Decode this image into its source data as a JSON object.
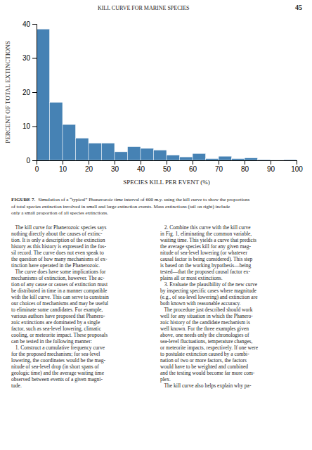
{
  "chart_data": {
    "type": "histogram",
    "bins": [
      0,
      5,
      10,
      15,
      20,
      25,
      30,
      35,
      40,
      45,
      50,
      55,
      60,
      65,
      70,
      75,
      80,
      85,
      90,
      95,
      100
    ],
    "values": [
      38.5,
      17.0,
      10.5,
      6.5,
      5.0,
      5.0,
      2.5,
      4.0,
      3.5,
      3.0,
      1.5,
      1.0,
      2.0,
      0.5,
      1.2,
      0.5,
      0.7,
      0.2,
      0.05,
      0.2
    ],
    "xlabel": "SPECIES KILL PER EVENT (%)",
    "ylabel": "PERCENT OF TOTAL EXTINCTIONS",
    "xlim": [
      0,
      100
    ],
    "ylim": [
      0,
      40
    ],
    "xticks": [
      0,
      10,
      20,
      30,
      40,
      50,
      60,
      70,
      80,
      90,
      100
    ],
    "yticks": [
      0,
      10,
      20,
      30,
      40
    ],
    "grid": false
  },
  "page_header": "KILL CURVE FOR MARINE SPECIES",
  "page_number": "45",
  "figure_caption_label": "FIGURE 7.",
  "figure_caption_lines": [
    "Simulation of a “typical” Phanerozoic time interval of 600 m.y. using the kill curve to show the proportions",
    "of total species extinction involved in small and large extinction events. Mass extinctions (tail on right) include",
    "only a small proportion of all species extinctions."
  ],
  "col1_lines": [
    "   The kill curve for Phanerozoic species says",
    "nothing directly about the causes of extinc-",
    "tion. It is only a description of the extinction",
    "history as this history is expressed in the fos-",
    "sil record. The curve does not even speak to",
    "the question of how many mechanisms of ex-",
    "tinction have operated in the Phanerozoic.",
    "   The curve does have some implications for",
    "mechanisms of extinction, however. The ac-",
    "tion of any cause or causes of extinction must",
    "be distributed in time in a manner compatible",
    "with the kill curve. This can serve to constrain",
    "our choices of mechanisms and may be useful",
    "to eliminate some candidates. For example,",
    "various authors have proposed that Phanero-",
    "zoic extinctions are dominated by a single",
    "factor, such as sea-level lowering, climatic",
    "cooling, or meteorite impact. These proposals",
    "can be tested in the following manner:",
    "   1. Construct a cumulative frequency curve",
    "for the proposed mechanism; for sea-level",
    "lowering, the coordinates would be the mag-",
    "nitude of sea-level drop (in short spans of",
    "geologic time) and the average waiting time",
    "observed between events of a given magni-",
    "tude."
  ],
  "col2_lines": [
    "   2. Combine this curve with the kill curve",
    "in Fig. 1, eliminating the common variable,",
    "waiting time. This yields a curve that predicts",
    "the average species kill for any given mag-",
    "nitude of sea-level lowering (or whatever",
    "causal factor is being considered). This step",
    "is based on the working hypothesis—being",
    "tested—that the proposed causal factor ex-",
    "plains all or most extinctions.",
    "   3. Evaluate the plausibility of the new curve",
    "by inspecting specific cases where magnitude",
    "(e.g., of sea-level lowering) and extinction are",
    "both known with reasonable accuracy.",
    "   The procedure just described should work",
    "well for any situation in which the Phanero-",
    "zoic history of the candidate mechanism is",
    "well known. For the three examples given",
    "above, one needs only the chronologies of",
    "sea-level fluctuations, temperature changes,",
    "or meteorite impacts, respectively. If one were",
    "to postulate extinction caused by a combi-",
    "nation of two or more factors, the factors",
    "would have to be weighted and combined",
    "and the testing would become far more com-",
    "plex.",
    "   The kill curve also helps explain why pa-"
  ]
}
